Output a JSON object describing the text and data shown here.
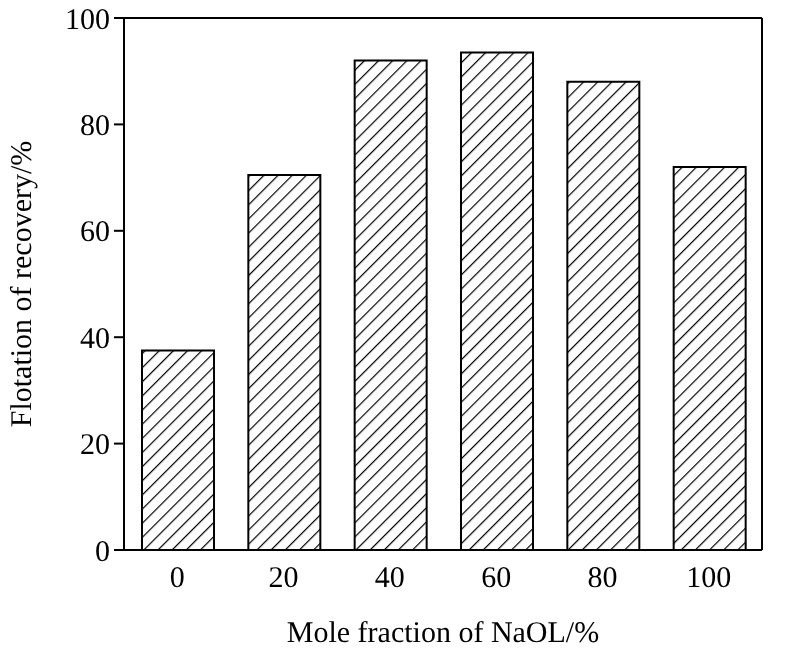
{
  "chart_data": {
    "type": "bar",
    "xlabel": "Mole fraction of NaOL/%",
    "ylabel": "Flotation of recovery/%",
    "categories": [
      "0",
      "20",
      "40",
      "60",
      "80",
      "100"
    ],
    "values": [
      37.5,
      70.5,
      92,
      93.5,
      88,
      72
    ],
    "color": "#000000",
    "ylim": [
      0,
      100
    ],
    "yticks": [
      0,
      20,
      40,
      60,
      80,
      100
    ]
  }
}
